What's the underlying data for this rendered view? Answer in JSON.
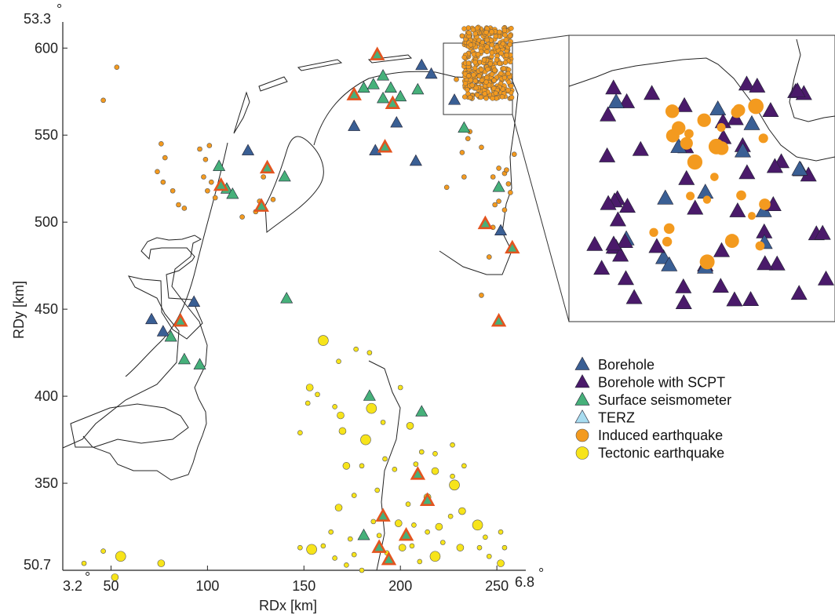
{
  "colors": {
    "borehole": "#3a5f94",
    "borehole_scpt": "#4a1a6a",
    "surface": "#46b07a",
    "terz": "#a8dcf0",
    "induced": "#f39a1f",
    "tectonic": "#f7e41a",
    "highlight_edge": "#e3541f",
    "coast": "#222222"
  },
  "chart_data": {
    "type": "scatter",
    "xlabel": "RDx [km]",
    "ylabel": "RDy [km]",
    "xlim": [
      25,
      265
    ],
    "ylim": [
      300,
      615
    ],
    "x_ticks": [
      "50",
      "100",
      "150",
      "200",
      "250"
    ],
    "y_ticks": [
      "350",
      "400",
      "450",
      "500",
      "550",
      "600"
    ],
    "corner_labels": {
      "lat_top": "53.3",
      "lat_bottom": "50.7",
      "lon_left": "3.2",
      "lon_right": "6.8",
      "degree": "°"
    },
    "legend": [
      {
        "label": "Borehole",
        "marker": "triangle",
        "color": "#3a5f94"
      },
      {
        "label": "Borehole with SCPT",
        "marker": "triangle",
        "color": "#4a1a6a"
      },
      {
        "label": "Surface seismometer",
        "marker": "triangle",
        "color": "#46b07a"
      },
      {
        "label": "TERZ",
        "marker": "triangle",
        "color": "#a8dcf0"
      },
      {
        "label": "Induced earthquake",
        "marker": "circle",
        "color": "#f39a1f"
      },
      {
        "label": "Tectonic earthquake",
        "marker": "circle",
        "color": "#f7e41a"
      }
    ],
    "inset_region": {
      "x": [
        233,
        258
      ],
      "y": [
        571,
        612
      ]
    },
    "series": [
      {
        "name": "Borehole",
        "points": [
          [
            71,
            444
          ],
          [
            77,
            437
          ],
          [
            93,
            454
          ],
          [
            121,
            541
          ],
          [
            176,
            555
          ],
          [
            187,
            541
          ],
          [
            198,
            557
          ],
          [
            208,
            535
          ],
          [
            211,
            590
          ],
          [
            216,
            585
          ],
          [
            228,
            570
          ],
          [
            252,
            495
          ]
        ]
      },
      {
        "name": "Surface seismometer",
        "points": [
          [
            81,
            434
          ],
          [
            88,
            421
          ],
          [
            96,
            418
          ],
          [
            106,
            532
          ],
          [
            110,
            519
          ],
          [
            113,
            516
          ],
          [
            140,
            526
          ],
          [
            141,
            456
          ],
          [
            181,
            577
          ],
          [
            186,
            579
          ],
          [
            191,
            584
          ],
          [
            191,
            571
          ],
          [
            195,
            577
          ],
          [
            200,
            572
          ],
          [
            209,
            576
          ],
          [
            233,
            554
          ],
          [
            251,
            520
          ],
          [
            184,
            400
          ],
          [
            211,
            391
          ],
          [
            181,
            320
          ]
        ]
      },
      {
        "name": "Surface seismometer (highlighted)",
        "points": [
          [
            86,
            443
          ],
          [
            107,
            521
          ],
          [
            128,
            509
          ],
          [
            131,
            531
          ],
          [
            176,
            573
          ],
          [
            188,
            596
          ],
          [
            192,
            543
          ],
          [
            196,
            568
          ],
          [
            214,
            340
          ],
          [
            191,
            331
          ],
          [
            189,
            313
          ],
          [
            194,
            306
          ],
          [
            203,
            320
          ],
          [
            209,
            355
          ],
          [
            251,
            443
          ],
          [
            258,
            485
          ],
          [
            244,
            499
          ]
        ]
      },
      {
        "name": "Induced earthquake",
        "points": [
          [
            53,
            589
          ],
          [
            46,
            570
          ],
          [
            76,
            545
          ],
          [
            78,
            537
          ],
          [
            74,
            529
          ],
          [
            77,
            523
          ],
          [
            82,
            518
          ],
          [
            85,
            510
          ],
          [
            88,
            508
          ],
          [
            96,
            542
          ],
          [
            99,
            536
          ],
          [
            101,
            544
          ],
          [
            98,
            526
          ],
          [
            102,
            523
          ],
          [
            100,
            518
          ],
          [
            104,
            514
          ],
          [
            129,
            526
          ],
          [
            127,
            512
          ],
          [
            125,
            506
          ],
          [
            134,
            513
          ],
          [
            118,
            503
          ],
          [
            232,
            540
          ],
          [
            235,
            548
          ],
          [
            236,
            552
          ],
          [
            233,
            526
          ],
          [
            242,
            543
          ],
          [
            251,
            512
          ],
          [
            248,
            526
          ],
          [
            251,
            531
          ],
          [
            254,
            528
          ],
          [
            255,
            530
          ],
          [
            256,
            522
          ],
          [
            249,
            510
          ],
          [
            254,
            507
          ],
          [
            257,
            517
          ],
          [
            248,
            497
          ],
          [
            259,
            539
          ],
          [
            224,
            520
          ],
          [
            246,
            480
          ],
          [
            242,
            458
          ],
          [
            229,
            582
          ],
          [
            232,
            607
          ],
          [
            236,
            607
          ],
          [
            235,
            595
          ]
        ]
      },
      {
        "name": "Tectonic earthquake",
        "points": [
          [
            160,
            432
          ],
          [
            168,
            420
          ],
          [
            177,
            427
          ],
          [
            184,
            425
          ],
          [
            153,
            405
          ],
          [
            157,
            401
          ],
          [
            152,
            396
          ],
          [
            166,
            394
          ],
          [
            169,
            389
          ],
          [
            185,
            393
          ],
          [
            200,
            405
          ],
          [
            191,
            385
          ],
          [
            205,
            383
          ],
          [
            227,
            372
          ],
          [
            218,
            367
          ],
          [
            211,
            368
          ],
          [
            170,
            380
          ],
          [
            148,
            379
          ],
          [
            182,
            375
          ],
          [
            180,
            360
          ],
          [
            172,
            360
          ],
          [
            192,
            364
          ],
          [
            197,
            358
          ],
          [
            208,
            361
          ],
          [
            218,
            357
          ],
          [
            227,
            354
          ],
          [
            233,
            360
          ],
          [
            228,
            349
          ],
          [
            214,
            342
          ],
          [
            204,
            338
          ],
          [
            188,
            346
          ],
          [
            176,
            343
          ],
          [
            168,
            336
          ],
          [
            164,
            322
          ],
          [
            174,
            318
          ],
          [
            160,
            314
          ],
          [
            154,
            312
          ],
          [
            166,
            307
          ],
          [
            176,
            309
          ],
          [
            189,
            320
          ],
          [
            199,
            327
          ],
          [
            207,
            326
          ],
          [
            214,
            322
          ],
          [
            226,
            331
          ],
          [
            232,
            334
          ],
          [
            240,
            326
          ],
          [
            244,
            319
          ],
          [
            246,
            308
          ],
          [
            252,
            304
          ],
          [
            254,
            313
          ],
          [
            252,
            322
          ],
          [
            241,
            313
          ],
          [
            231,
            313
          ],
          [
            222,
            316
          ],
          [
            218,
            308
          ],
          [
            210,
            305
          ],
          [
            201,
            313
          ],
          [
            193,
            310
          ],
          [
            180,
            300
          ],
          [
            172,
            303
          ],
          [
            52,
            296
          ],
          [
            36,
            304
          ],
          [
            46,
            311
          ],
          [
            55,
            308
          ],
          [
            76,
            304
          ],
          [
            148,
            313
          ],
          [
            186,
            328
          ],
          [
            206,
            314
          ],
          [
            220,
            325
          ]
        ]
      }
    ]
  }
}
